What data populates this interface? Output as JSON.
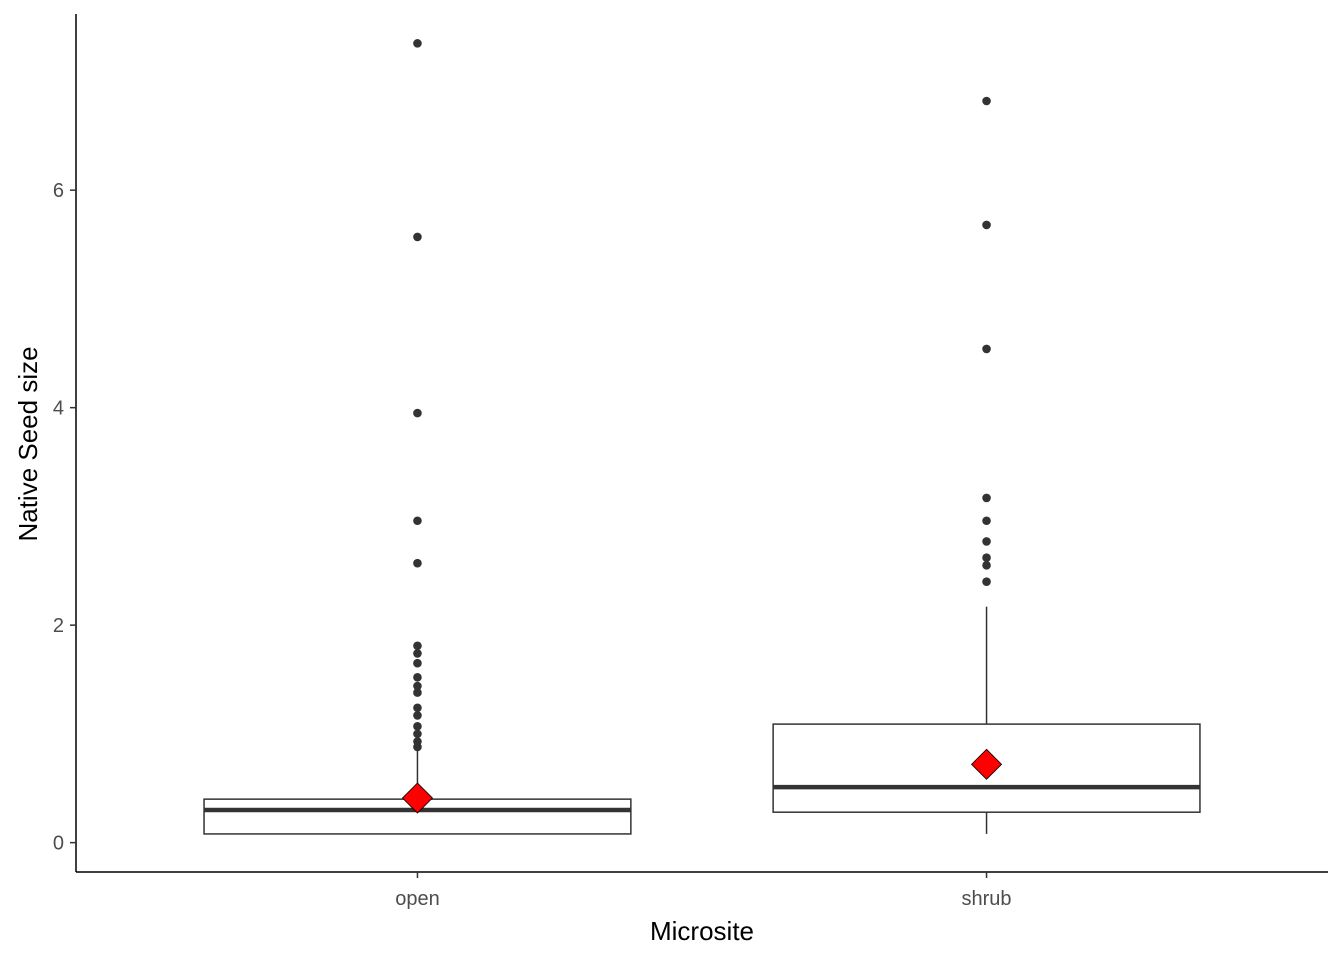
{
  "chart_data": {
    "type": "boxplot",
    "title": "",
    "xlabel": "Microsite",
    "ylabel": "Native Seed size",
    "ylim": [
      -0.27,
      7.62
    ],
    "yticks": [
      0,
      2,
      4,
      6
    ],
    "ytick_labels": [
      "0",
      "2",
      "4",
      "6"
    ],
    "grid": false,
    "legend": "none",
    "categories": [
      "open",
      "shrub"
    ],
    "boxes": [
      {
        "category": "open",
        "q1": 0.08,
        "median": 0.3,
        "q3": 0.4,
        "whisker_low": 0.08,
        "whisker_high": 0.85,
        "mean": 0.41,
        "outliers": [
          0.88,
          0.93,
          1.0,
          1.07,
          1.17,
          1.24,
          1.38,
          1.44,
          1.52,
          1.65,
          1.74,
          1.81,
          2.57,
          2.96,
          3.95,
          5.57,
          7.35
        ]
      },
      {
        "category": "shrub",
        "q1": 0.28,
        "median": 0.51,
        "q3": 1.09,
        "whisker_low": 0.08,
        "whisker_high": 2.17,
        "mean": 0.72,
        "outliers": [
          2.4,
          2.55,
          2.62,
          2.77,
          2.96,
          3.17,
          4.54,
          5.68,
          6.82
        ]
      }
    ],
    "colors": {
      "box_outline": "#333333",
      "box_fill": "#ffffff",
      "outlier": "#333333",
      "mean_marker": "#ff0000",
      "axis": "#000000"
    },
    "mean_marker_shape": "diamond"
  }
}
